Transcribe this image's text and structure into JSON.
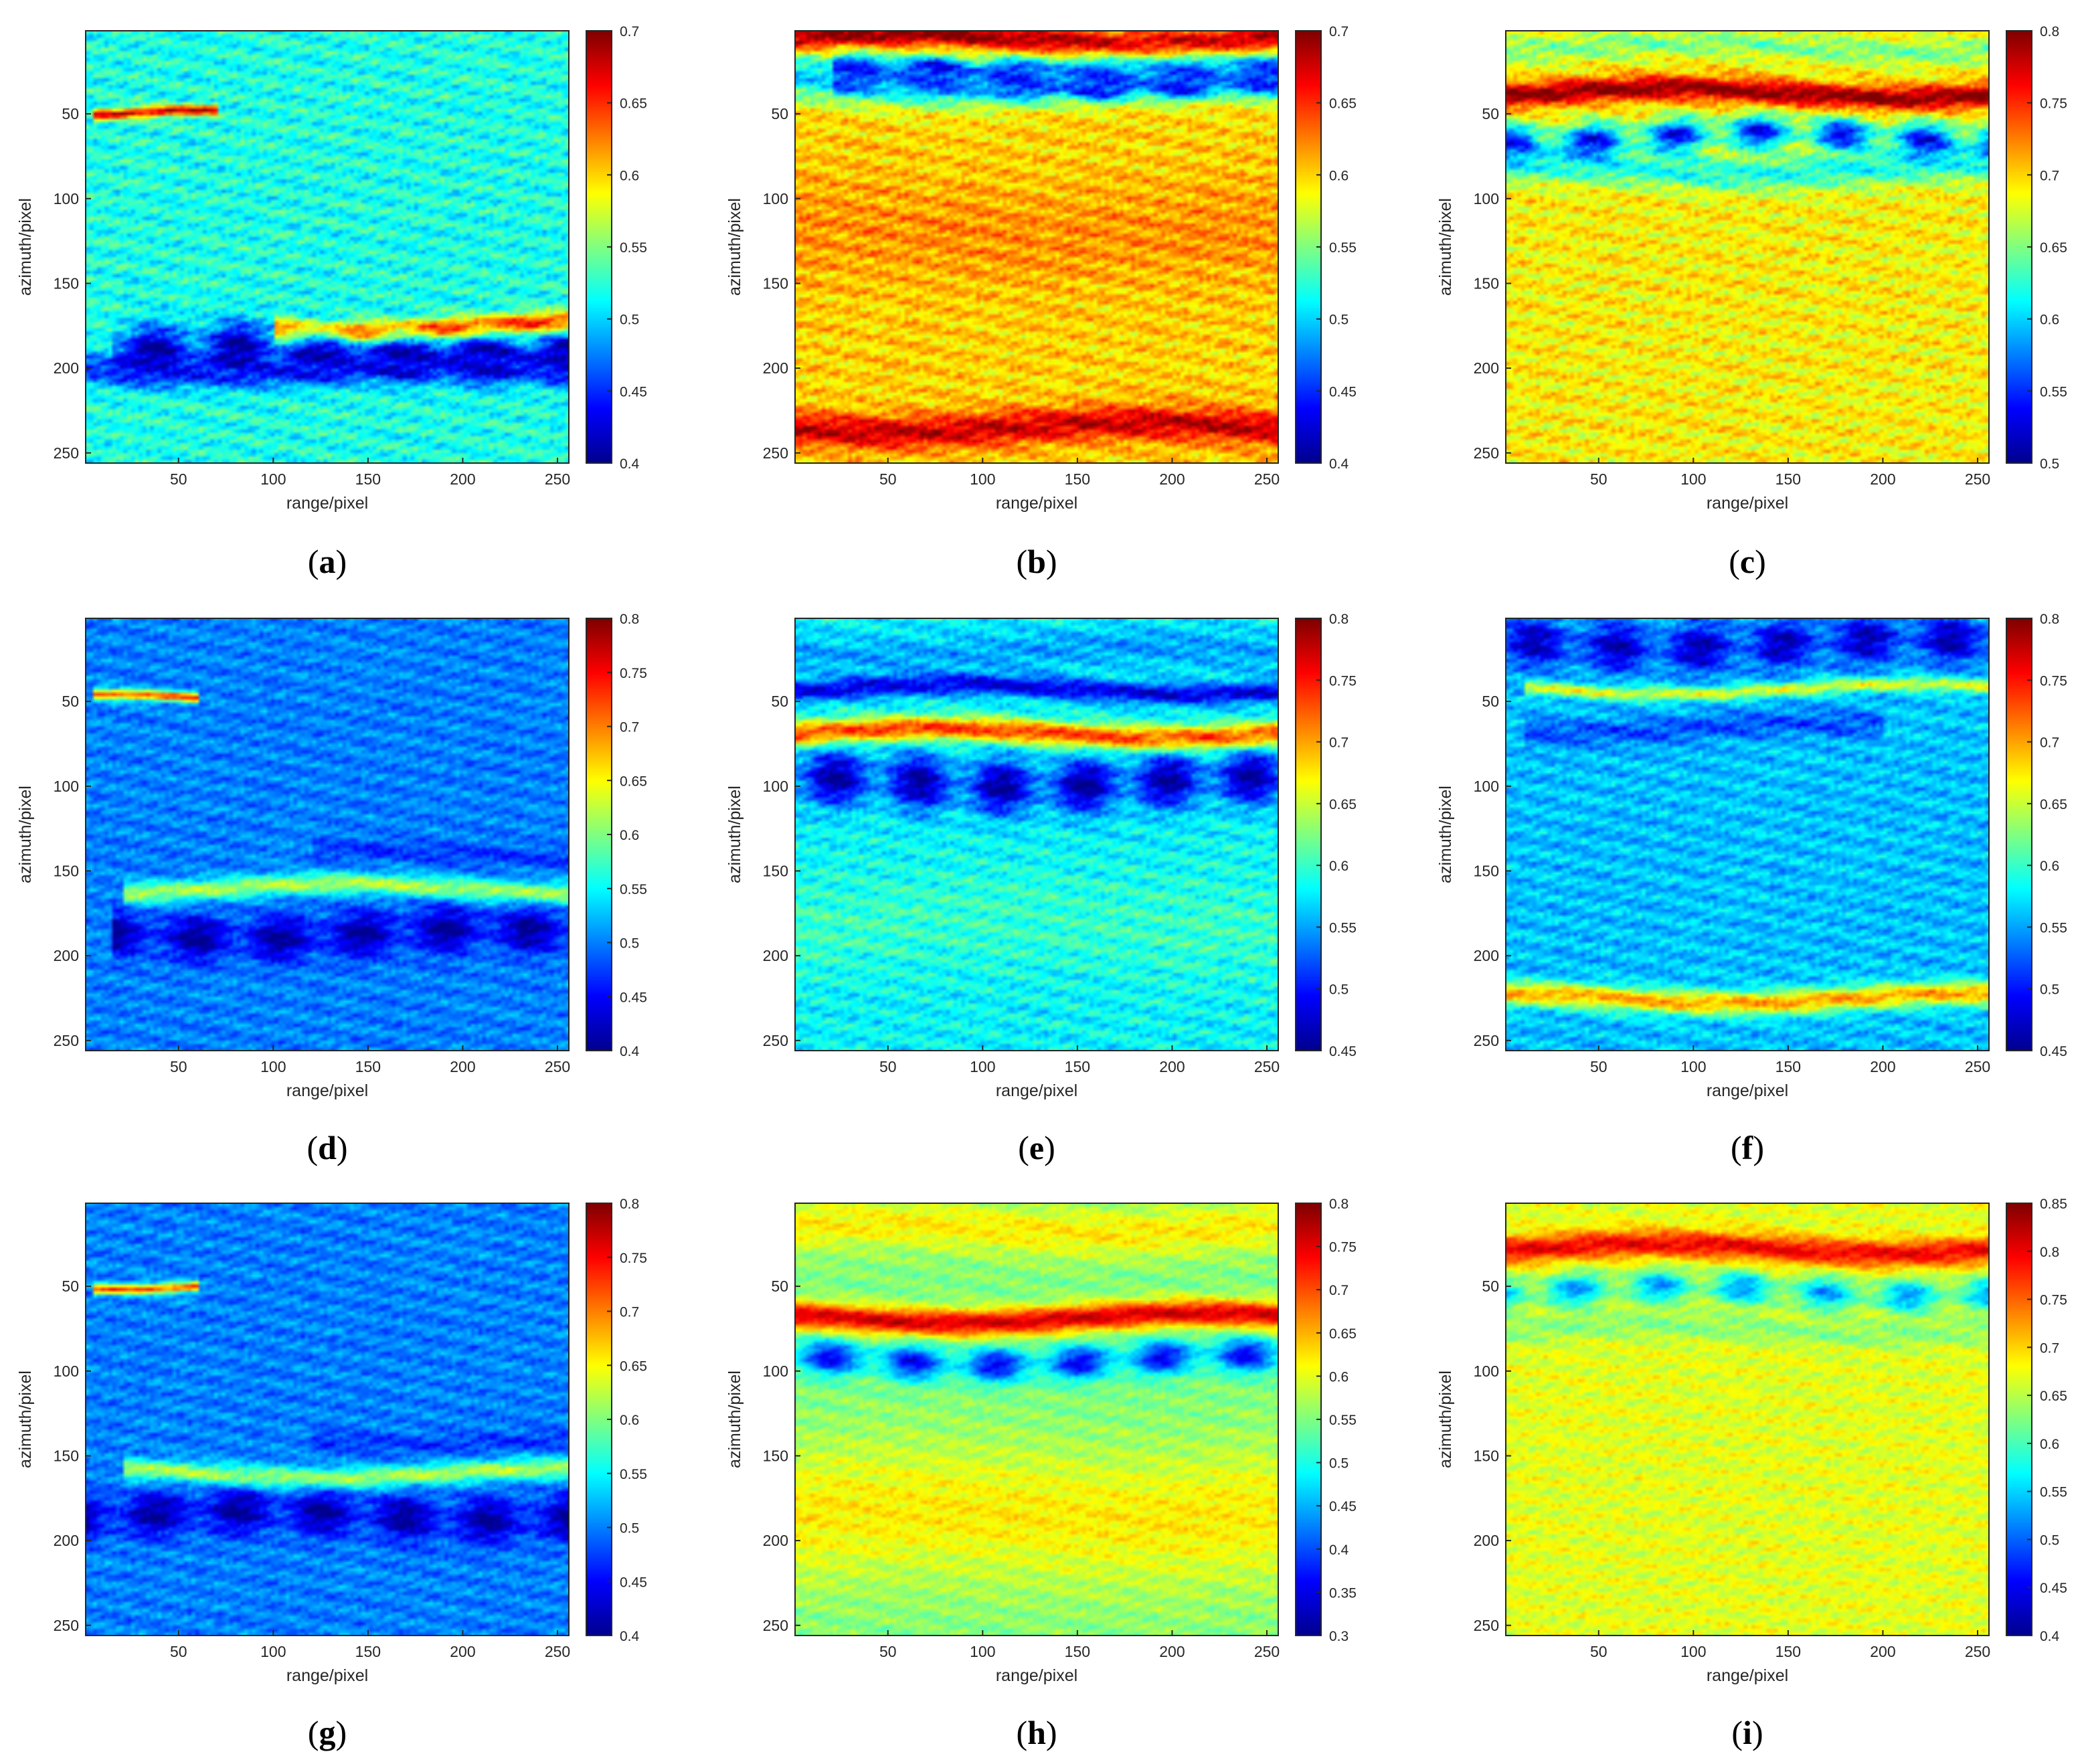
{
  "figure": {
    "background": "#ffffff"
  },
  "colormap": [
    "#00008f",
    "#0000ff",
    "#0080ff",
    "#00ffff",
    "#80ff80",
    "#ffff00",
    "#ff8000",
    "#ff0000",
    "#800000"
  ],
  "chart_data": [
    {
      "panel": "(a)",
      "type": "heatmap",
      "xlabel": "range/pixel",
      "ylabel": "azimuth/pixel",
      "xlim": [
        1,
        256
      ],
      "ylim": [
        1,
        256
      ],
      "xticks": [
        50,
        100,
        150,
        200,
        250
      ],
      "yticks": [
        50,
        100,
        150,
        200,
        250
      ],
      "clim": [
        0.4,
        0.7
      ],
      "cticks": [
        0.4,
        0.45,
        0.5,
        0.55,
        0.6,
        0.65,
        0.7
      ],
      "background_value": 0.52,
      "bands": [
        {
          "y": 175,
          "w": 6,
          "v": 0.66,
          "x0": 100,
          "x1": 256
        },
        {
          "y": 190,
          "w": 14,
          "v": 0.4,
          "x0": 15,
          "x1": 256,
          "lumpy": true
        },
        {
          "y": 50,
          "w": 3,
          "v": 0.68,
          "x0": 5,
          "x1": 70
        },
        {
          "y": 200,
          "w": 9,
          "v": 0.45,
          "x0": 0,
          "x1": 256
        }
      ]
    },
    {
      "panel": "(b)",
      "type": "heatmap",
      "xlabel": "range/pixel",
      "ylabel": "azimuth/pixel",
      "xlim": [
        1,
        256
      ],
      "ylim": [
        1,
        256
      ],
      "xticks": [
        50,
        100,
        150,
        200,
        250
      ],
      "yticks": [
        50,
        100,
        150,
        200,
        250
      ],
      "clim": [
        0.4,
        0.7
      ],
      "cticks": [
        0.4,
        0.45,
        0.5,
        0.55,
        0.6,
        0.65,
        0.7
      ],
      "background_value": 0.6,
      "bands": [
        {
          "y": 5,
          "w": 7,
          "v": 0.7,
          "x0": 0,
          "x1": 256
        },
        {
          "y": 28,
          "w": 14,
          "v": 0.5,
          "x0": 0,
          "x1": 256
        },
        {
          "y": 28,
          "w": 9,
          "v": 0.4,
          "x0": 20,
          "x1": 256,
          "lumpy": true
        },
        {
          "y": 120,
          "w": 30,
          "v": 0.62,
          "x0": 0,
          "x1": 256
        },
        {
          "y": 235,
          "w": 10,
          "v": 0.68,
          "x0": 0,
          "x1": 256
        }
      ]
    },
    {
      "panel": "(c)",
      "type": "heatmap",
      "xlabel": "range/pixel",
      "ylabel": "azimuth/pixel",
      "xlim": [
        1,
        256
      ],
      "ylim": [
        1,
        256
      ],
      "xticks": [
        50,
        100,
        150,
        200,
        250
      ],
      "yticks": [
        50,
        100,
        150,
        200,
        250
      ],
      "clim": [
        0.5,
        0.8
      ],
      "cticks": [
        0.5,
        0.55,
        0.6,
        0.65,
        0.7,
        0.75,
        0.8
      ],
      "background_value": 0.69,
      "bands": [
        {
          "y": 10,
          "w": 8,
          "v": 0.65,
          "x0": 0,
          "x1": 256
        },
        {
          "y": 37,
          "w": 7,
          "v": 0.8,
          "x0": 0,
          "x1": 256
        },
        {
          "y": 63,
          "w": 10,
          "v": 0.53,
          "x0": 0,
          "x1": 256,
          "lumpy": true
        },
        {
          "y": 82,
          "w": 10,
          "v": 0.62,
          "x0": 0,
          "x1": 256
        }
      ]
    },
    {
      "panel": "(d)",
      "type": "heatmap",
      "xlabel": "range/pixel",
      "ylabel": "azimuth/pixel",
      "xlim": [
        1,
        256
      ],
      "ylim": [
        1,
        256
      ],
      "xticks": [
        50,
        100,
        150,
        200,
        250
      ],
      "yticks": [
        50,
        100,
        150,
        200,
        250
      ],
      "clim": [
        0.4,
        0.8
      ],
      "cticks": [
        0.4,
        0.45,
        0.5,
        0.55,
        0.6,
        0.65,
        0.7,
        0.75,
        0.8
      ],
      "background_value": 0.5,
      "bands": [
        {
          "y": 160,
          "w": 6,
          "v": 0.62,
          "x0": 20,
          "x1": 256
        },
        {
          "y": 187,
          "w": 13,
          "v": 0.4,
          "x0": 15,
          "x1": 256,
          "lumpy": true
        },
        {
          "y": 48,
          "w": 3,
          "v": 0.72,
          "x0": 5,
          "x1": 60
        },
        {
          "y": 140,
          "w": 6,
          "v": 0.47,
          "x0": 120,
          "x1": 256
        }
      ]
    },
    {
      "panel": "(e)",
      "type": "heatmap",
      "xlabel": "range/pixel",
      "ylabel": "azimuth/pixel",
      "xlim": [
        1,
        256
      ],
      "ylim": [
        1,
        256
      ],
      "xticks": [
        50,
        100,
        150,
        200,
        250
      ],
      "yticks": [
        50,
        100,
        150,
        200,
        250
      ],
      "clim": [
        0.45,
        0.8
      ],
      "cticks": [
        0.45,
        0.5,
        0.55,
        0.6,
        0.65,
        0.7,
        0.75,
        0.8
      ],
      "background_value": 0.58,
      "bands": [
        {
          "y": 20,
          "w": 12,
          "v": 0.55,
          "x0": 0,
          "x1": 256
        },
        {
          "y": 42,
          "w": 6,
          "v": 0.48,
          "x0": 0,
          "x1": 256
        },
        {
          "y": 68,
          "w": 7,
          "v": 0.74,
          "x0": 0,
          "x1": 256
        },
        {
          "y": 97,
          "w": 16,
          "v": 0.45,
          "x0": 0,
          "x1": 256,
          "lumpy": true
        },
        {
          "y": 180,
          "w": 30,
          "v": 0.6,
          "x0": 0,
          "x1": 256
        }
      ]
    },
    {
      "panel": "(f)",
      "type": "heatmap",
      "xlabel": "range/pixel",
      "ylabel": "azimuth/pixel",
      "xlim": [
        1,
        256
      ],
      "ylim": [
        1,
        256
      ],
      "xticks": [
        50,
        100,
        150,
        200,
        250
      ],
      "yticks": [
        50,
        100,
        150,
        200,
        250
      ],
      "clim": [
        0.45,
        0.8
      ],
      "cticks": [
        0.45,
        0.5,
        0.55,
        0.6,
        0.65,
        0.7,
        0.75,
        0.8
      ],
      "background_value": 0.56,
      "bands": [
        {
          "y": 15,
          "w": 14,
          "v": 0.46,
          "x0": 0,
          "x1": 256,
          "lumpy": true
        },
        {
          "y": 42,
          "w": 4,
          "v": 0.66,
          "x0": 10,
          "x1": 256
        },
        {
          "y": 65,
          "w": 8,
          "v": 0.52,
          "x0": 10,
          "x1": 200
        },
        {
          "y": 225,
          "w": 7,
          "v": 0.7,
          "x0": 0,
          "x1": 256
        }
      ]
    },
    {
      "panel": "(g)",
      "type": "heatmap",
      "xlabel": "range/pixel",
      "ylabel": "azimuth/pixel",
      "xlim": [
        1,
        256
      ],
      "ylim": [
        1,
        256
      ],
      "xticks": [
        50,
        100,
        150,
        200,
        250
      ],
      "yticks": [
        50,
        100,
        150,
        200,
        250
      ],
      "clim": [
        0.4,
        0.8
      ],
      "cticks": [
        0.4,
        0.45,
        0.5,
        0.55,
        0.6,
        0.65,
        0.7,
        0.75,
        0.8
      ],
      "background_value": 0.5,
      "bands": [
        {
          "y": 160,
          "w": 6,
          "v": 0.62,
          "x0": 20,
          "x1": 256
        },
        {
          "y": 185,
          "w": 13,
          "v": 0.4,
          "x0": 0,
          "x1": 256,
          "lumpy": true
        },
        {
          "y": 48,
          "w": 3,
          "v": 0.72,
          "x0": 5,
          "x1": 60
        },
        {
          "y": 140,
          "w": 6,
          "v": 0.47,
          "x0": 120,
          "x1": 256
        }
      ]
    },
    {
      "panel": "(h)",
      "type": "heatmap",
      "xlabel": "range/pixel",
      "ylabel": "azimuth/pixel",
      "xlim": [
        1,
        256
      ],
      "ylim": [
        1,
        256
      ],
      "xticks": [
        50,
        100,
        150,
        200,
        250
      ],
      "yticks": [
        50,
        100,
        150,
        200,
        250
      ],
      "clim": [
        0.3,
        0.8
      ],
      "cticks": [
        0.3,
        0.35,
        0.4,
        0.45,
        0.5,
        0.55,
        0.6,
        0.65,
        0.7,
        0.75,
        0.8
      ],
      "background_value": 0.55,
      "bands": [
        {
          "y": 15,
          "w": 15,
          "v": 0.62,
          "x0": 0,
          "x1": 256
        },
        {
          "y": 68,
          "w": 8,
          "v": 0.76,
          "x0": 0,
          "x1": 256
        },
        {
          "y": 93,
          "w": 10,
          "v": 0.35,
          "x0": 0,
          "x1": 256,
          "lumpy": true
        },
        {
          "y": 185,
          "w": 40,
          "v": 0.62,
          "x0": 0,
          "x1": 256
        }
      ]
    },
    {
      "panel": "(i)",
      "type": "heatmap",
      "xlabel": "range/pixel",
      "ylabel": "azimuth/pixel",
      "xlim": [
        1,
        256
      ],
      "ylim": [
        1,
        256
      ],
      "xticks": [
        50,
        100,
        150,
        200,
        250
      ],
      "yticks": [
        50,
        100,
        150,
        200,
        250
      ],
      "clim": [
        0.4,
        0.85
      ],
      "cticks": [
        0.4,
        0.45,
        0.5,
        0.55,
        0.6,
        0.65,
        0.7,
        0.75,
        0.8,
        0.85
      ],
      "background_value": 0.67,
      "bands": [
        {
          "y": 27,
          "w": 8,
          "v": 0.8,
          "x0": 0,
          "x1": 256
        },
        {
          "y": 52,
          "w": 10,
          "v": 0.52,
          "x0": 0,
          "x1": 256,
          "lumpy": true
        },
        {
          "y": 75,
          "w": 8,
          "v": 0.63,
          "x0": 0,
          "x1": 256
        }
      ]
    }
  ]
}
